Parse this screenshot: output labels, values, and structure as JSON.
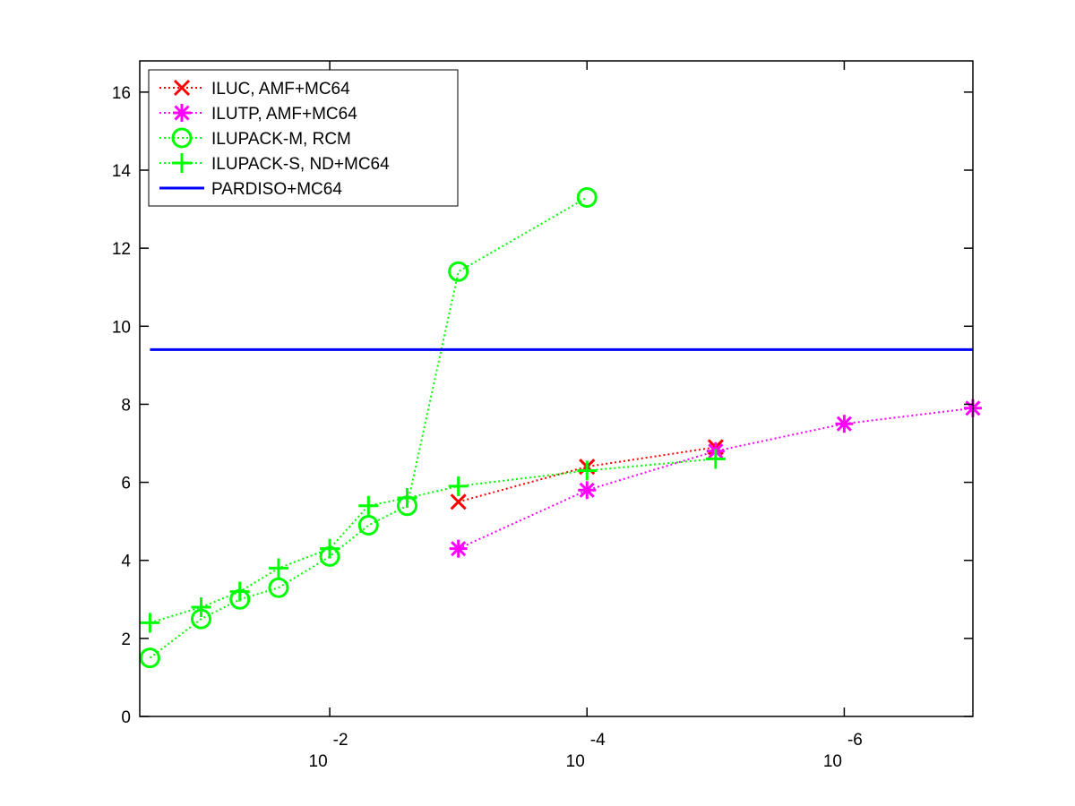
{
  "chart_data": {
    "type": "line",
    "title": "",
    "xlabel": "",
    "ylabel": "",
    "x_scale": "log-reversed",
    "xlim": [
      0.3,
      1e-07
    ],
    "ylim": [
      0,
      16.8
    ],
    "grid": false,
    "legend_position": "top-left",
    "x_ticks": [
      {
        "value": 0.01,
        "base": "10",
        "exp": "-2"
      },
      {
        "value": 0.0001,
        "base": "10",
        "exp": "-4"
      },
      {
        "value": 1e-06,
        "base": "10",
        "exp": "-6"
      }
    ],
    "y_ticks": [
      "0",
      "2",
      "4",
      "6",
      "8",
      "10",
      "12",
      "14",
      "16"
    ],
    "series": [
      {
        "name": "ILUC, AMF+MC64",
        "color": "#ff0000",
        "marker": "x",
        "line_style": "dotted",
        "points": [
          [
            0.001,
            5.5
          ],
          [
            0.0001,
            6.4
          ],
          [
            1e-05,
            6.9
          ]
        ]
      },
      {
        "name": "ILUTP, AMF+MC64",
        "color": "#ff00ff",
        "marker": "asterisk",
        "line_style": "dotted",
        "points": [
          [
            0.001,
            4.3
          ],
          [
            0.0001,
            5.8
          ],
          [
            1e-05,
            6.8
          ],
          [
            1e-06,
            7.5
          ],
          [
            1e-07,
            7.9
          ]
        ]
      },
      {
        "name": "ILUPACK-M, RCM",
        "color": "#00ff00",
        "marker": "circle",
        "line_style": "dotted",
        "points": [
          [
            0.25,
            1.5
          ],
          [
            0.1,
            2.5
          ],
          [
            0.05,
            3.0
          ],
          [
            0.025,
            3.3
          ],
          [
            0.01,
            4.1
          ],
          [
            0.005,
            4.9
          ],
          [
            0.0025,
            5.4
          ],
          [
            0.001,
            11.4
          ],
          [
            0.0001,
            13.3
          ]
        ]
      },
      {
        "name": "ILUPACK-S, ND+MC64",
        "color": "#00ff00",
        "marker": "plus",
        "line_style": "dotted",
        "points": [
          [
            0.25,
            2.4
          ],
          [
            0.1,
            2.8
          ],
          [
            0.05,
            3.2
          ],
          [
            0.025,
            3.8
          ],
          [
            0.01,
            4.3
          ],
          [
            0.005,
            5.4
          ],
          [
            0.0025,
            5.6
          ],
          [
            0.001,
            5.9
          ],
          [
            0.0001,
            6.3
          ],
          [
            1e-05,
            6.6
          ]
        ]
      },
      {
        "name": "PARDISO+MC64",
        "color": "#0000ff",
        "marker": "none",
        "line_style": "solid",
        "points": [
          [
            0.25,
            9.4
          ],
          [
            1e-07,
            9.4
          ]
        ]
      }
    ]
  }
}
